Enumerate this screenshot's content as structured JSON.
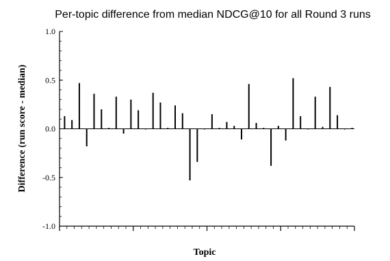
{
  "chart_data": {
    "type": "bar",
    "title": "Per-topic difference from median NDCG@10 for all Round 3 runs",
    "xlabel": "Topic",
    "ylabel": "Difference (run score - median)",
    "ylim": [
      -1.0,
      1.0
    ],
    "yticks": [
      -1.0,
      -0.5,
      0.0,
      0.5,
      1.0
    ],
    "ytick_labels": [
      "-1.0",
      "-0.5",
      "0.0",
      "0.5",
      "1.0"
    ],
    "x_tick_count": 40,
    "series": [
      {
        "values": [
          0.13,
          0.09,
          0.47,
          -0.18,
          0.36,
          0.2,
          0.01,
          0.33,
          -0.05,
          0.3,
          0.19,
          0.0,
          0.37,
          0.27,
          0.01,
          0.24,
          0.16,
          -0.53,
          -0.34,
          0.0,
          0.15,
          0.01,
          0.07,
          0.03,
          -0.11,
          0.46,
          0.06,
          0.01,
          -0.38,
          0.03,
          -0.12,
          0.52,
          0.13,
          0.0,
          0.33,
          0.02,
          0.43,
          0.14,
          0.0,
          0.01
        ]
      }
    ],
    "colors": {
      "bar": "#000000",
      "axis": "#000000"
    }
  }
}
